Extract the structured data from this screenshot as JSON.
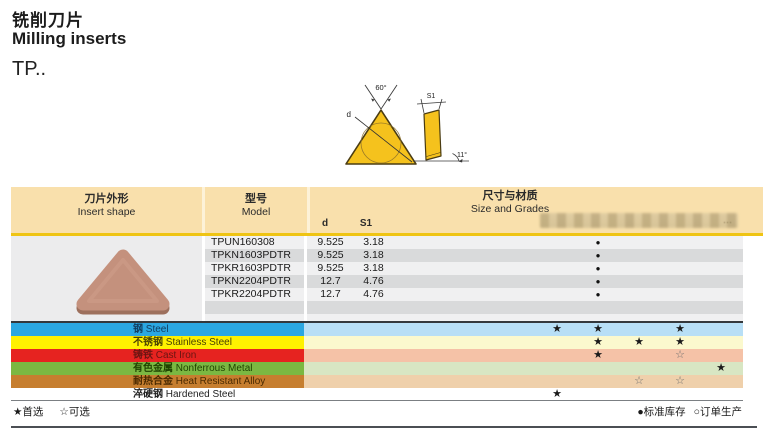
{
  "page": {
    "title_cn": "铣削刀片",
    "title_en": "Milling inserts",
    "series": "TP.."
  },
  "diagram": {
    "angle_top": "60°",
    "dim_d": "d",
    "dim_s1": "S1",
    "angle_side": "11°"
  },
  "table": {
    "header": {
      "insert_shape_cn": "刀片外形",
      "insert_shape_en": "Insert shape",
      "model_cn": "型号",
      "model_en": "Model",
      "size_grades_cn": "尺寸与材质",
      "size_grades_en": "Size and Grades",
      "col_d": "d",
      "col_s1": "S1",
      "blurred_hint": "···"
    },
    "stock_symbol": "●",
    "rows": [
      {
        "model": "TPUN160308",
        "d": "9.525",
        "s1": "3.18",
        "stock_col": 2
      },
      {
        "model": "TPKN1603PDTR",
        "d": "9.525",
        "s1": "3.18",
        "stock_col": 2
      },
      {
        "model": "TPKR1603PDTR",
        "d": "9.525",
        "s1": "3.18",
        "stock_col": 2
      },
      {
        "model": "TPKN2204PDTR",
        "d": "12.7",
        "s1": "4.76",
        "stock_col": 2
      },
      {
        "model": "TPKR2204PDTR",
        "d": "12.7",
        "s1": "4.76",
        "stock_col": 2
      }
    ]
  },
  "materials": {
    "star_filled": "★",
    "star_open": "☆",
    "rows": [
      {
        "name_cn": "钢",
        "name_en": "Steel",
        "color": "#2ba7e1",
        "tint": "#b8dff6",
        "text_color": "#123c5e",
        "stars": [
          {
            "col": 1,
            "t": "f"
          },
          {
            "col": 2,
            "t": "f"
          },
          {
            "col": 4,
            "t": "f"
          }
        ]
      },
      {
        "name_cn": "不锈钢",
        "name_en": "Stainless Steel",
        "color": "#fff100",
        "tint": "#fbf9ce",
        "text_color": "#4a4200",
        "stars": [
          {
            "col": 2,
            "t": "f"
          },
          {
            "col": 3,
            "t": "f"
          },
          {
            "col": 4,
            "t": "f"
          }
        ]
      },
      {
        "name_cn": "铸铁",
        "name_en": "Cast Iron",
        "color": "#e62320",
        "tint": "#f5c2a7",
        "text_color": "#6b1512",
        "stars": [
          {
            "col": 2,
            "t": "f"
          },
          {
            "col": 4,
            "t": "o"
          }
        ]
      },
      {
        "name_cn": "有色金属",
        "name_en": "Nonferrous Metal",
        "color": "#7bb842",
        "tint": "#d8e6c3",
        "text_color": "#1f4400",
        "stars": [
          {
            "col": 5,
            "t": "f"
          }
        ]
      },
      {
        "name_cn": "耐热合金",
        "name_en": "Heat Resistant Alloy",
        "color": "#c67e2f",
        "tint": "#efd0ab",
        "text_color": "#4a2a00",
        "stars": [
          {
            "col": 3,
            "t": "o"
          },
          {
            "col": 4,
            "t": "o"
          }
        ]
      },
      {
        "name_cn": "淬硬钢",
        "name_en": "Hardened Steel",
        "color": "#ffffff",
        "tint": "#ffffff",
        "text_color": "#222222",
        "stars": [
          {
            "col": 1,
            "t": "f"
          }
        ]
      }
    ]
  },
  "legend": {
    "preferred": "★首选",
    "optional": "☆可选",
    "standard_stock": "●标准库存",
    "made_to_order": "○订单生产"
  },
  "colors": {
    "header_bg": "#f9e0ac",
    "gold_line": "#efc413",
    "row_light": "#f0f0f1",
    "row_dark": "#d9dadb",
    "photo_cell_bg": "#ececed",
    "insert_yellow": "#f5c21d",
    "insert_photo_brown": "#c4917d"
  }
}
